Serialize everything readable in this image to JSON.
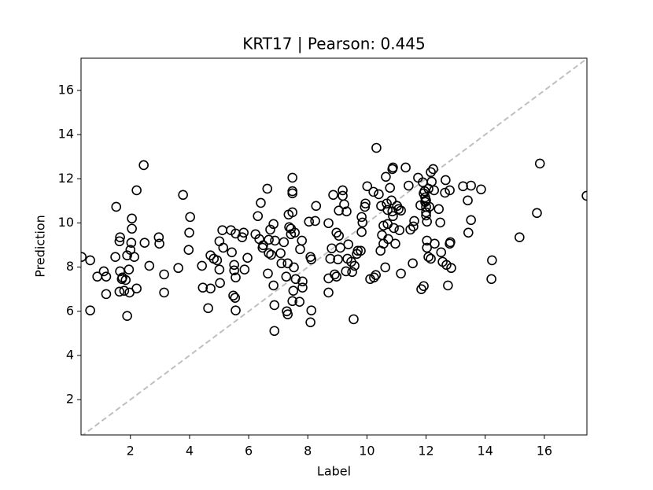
{
  "chart_data": {
    "type": "scatter",
    "title": "KRT17  |  Pearson: 0.445",
    "x_label": "Label",
    "y_label": "Prediction",
    "xlim": [
      0.33,
      17.44
    ],
    "ylim": [
      0.4,
      17.46
    ],
    "xticks": [
      2,
      4,
      6,
      8,
      10,
      12,
      14,
      16
    ],
    "yticks": [
      2,
      4,
      6,
      8,
      10,
      12,
      14,
      16
    ],
    "color": "#000000",
    "identity_line": true,
    "identity_line_color": "#bfbfbf",
    "x": [
      0.35,
      0.64,
      0.64,
      0.88,
      1.1,
      1.18,
      1.18,
      1.52,
      1.49,
      1.63,
      1.65,
      1.63,
      1.65,
      1.73,
      1.79,
      1.71,
      1.84,
      1.89,
      1.89,
      1.95,
      1.97,
      2.0,
      2.03,
      2.05,
      2.05,
      2.13,
      2.21,
      2.21,
      2.45,
      2.48,
      2.64,
      2.96,
      2.98,
      3.14,
      3.14,
      3.62,
      3.78,
      3.97,
      3.99,
      4.02,
      4.42,
      4.45,
      4.63,
      4.71,
      4.71,
      4.82,
      4.93,
      5.01,
      5.11,
      5.14,
      5.01,
      5.03,
      5.4,
      5.43,
      5.51,
      5.51,
      5.48,
      5.54,
      5.56,
      5.56,
      5.56,
      5.78,
      5.83,
      5.86,
      5.96,
      6.23,
      6.31,
      6.36,
      6.41,
      6.47,
      6.49,
      6.63,
      6.68,
      6.65,
      6.68,
      6.73,
      6.76,
      6.84,
      6.87,
      6.87,
      6.84,
      6.89,
      7.08,
      7.11,
      7.19,
      7.27,
      7.29,
      7.32,
      7.32,
      7.35,
      7.37,
      7.43,
      7.43,
      7.48,
      7.48,
      7.48,
      7.48,
      7.48,
      7.51,
      7.53,
      7.56,
      7.59,
      7.72,
      7.74,
      7.8,
      7.82,
      7.82,
      8.09,
      8.12,
      8.04,
      8.12,
      8.09,
      8.25,
      8.28,
      8.7,
      8.7,
      8.7,
      8.76,
      8.81,
      8.86,
      8.91,
      8.97,
      8.97,
      9.05,
      9.05,
      9.02,
      9.1,
      9.18,
      9.18,
      9.23,
      9.29,
      9.34,
      9.37,
      9.31,
      9.47,
      9.5,
      9.55,
      9.58,
      9.66,
      9.69,
      9.79,
      9.82,
      9.82,
      9.85,
      9.93,
      9.95,
      10.01,
      10.11,
      10.22,
      10.24,
      10.32,
      10.3,
      10.4,
      10.46,
      10.48,
      10.51,
      10.56,
      10.56,
      10.62,
      10.64,
      10.67,
      10.7,
      10.7,
      10.72,
      10.78,
      10.83,
      10.86,
      10.88,
      10.88,
      10.86,
      10.91,
      10.96,
      11.02,
      11.07,
      11.1,
      11.15,
      11.15,
      11.31,
      11.41,
      11.47,
      11.57,
      11.6,
      11.55,
      11.73,
      11.81,
      11.84,
      11.89,
      11.92,
      11.92,
      11.95,
      11.97,
      12.0,
      11.97,
      12.0,
      12.0,
      12.0,
      12.03,
      12.03,
      12.03,
      12.08,
      12.08,
      12.11,
      12.16,
      12.19,
      12.16,
      12.24,
      12.27,
      12.29,
      12.43,
      12.48,
      12.51,
      12.56,
      12.64,
      12.66,
      12.69,
      12.74,
      12.8,
      12.8,
      12.82,
      12.85,
      13.25,
      13.41,
      13.43,
      13.52,
      13.52,
      13.86,
      14.21,
      14.23,
      15.16,
      15.75,
      15.85,
      17.43
    ],
    "values": [
      8.46,
      8.31,
      6.04,
      7.57,
      7.81,
      7.57,
      6.78,
      10.73,
      8.46,
      9.17,
      9.35,
      6.89,
      7.81,
      7.53,
      6.93,
      7.46,
      7.42,
      5.79,
      8.53,
      7.89,
      6.85,
      8.78,
      9.1,
      10.2,
      9.74,
      8.46,
      11.48,
      7.03,
      12.62,
      9.1,
      8.06,
      9.35,
      9.06,
      7.67,
      6.85,
      7.96,
      11.27,
      8.78,
      9.56,
      10.27,
      8.06,
      7.07,
      6.14,
      7.03,
      8.53,
      8.38,
      8.31,
      9.17,
      9.67,
      8.88,
      7.89,
      7.28,
      9.67,
      8.67,
      8.1,
      7.85,
      6.71,
      6.61,
      9.52,
      7.53,
      6.04,
      9.35,
      9.56,
      7.89,
      8.42,
      9.49,
      10.31,
      9.27,
      10.91,
      8.88,
      8.99,
      11.55,
      9.24,
      7.71,
      8.63,
      9.7,
      8.56,
      9.95,
      6.28,
      5.11,
      7.17,
      9.2,
      8.63,
      8.17,
      9.13,
      7.57,
      6.0,
      5.86,
      8.17,
      10.38,
      9.81,
      9.74,
      9.49,
      12.05,
      11.44,
      11.34,
      10.48,
      6.46,
      6.93,
      7.99,
      9.56,
      7.46,
      6.43,
      8.81,
      9.2,
      7.07,
      7.35,
      8.46,
      8.35,
      10.06,
      6.04,
      5.5,
      10.09,
      10.77,
      9.99,
      7.49,
      6.85,
      8.38,
      8.85,
      11.27,
      7.67,
      7.57,
      9.56,
      9.42,
      10.56,
      8.35,
      8.88,
      11.48,
      11.23,
      10.84,
      7.81,
      8.38,
      9.03,
      10.52,
      8.24,
      7.78,
      5.64,
      8.06,
      8.6,
      8.74,
      8.74,
      9.59,
      10.27,
      10.02,
      10.73,
      10.88,
      11.66,
      7.46,
      11.41,
      7.53,
      13.4,
      7.64,
      11.3,
      8.74,
      10.77,
      9.45,
      9.88,
      9.06,
      7.99,
      12.09,
      10.88,
      10.59,
      9.95,
      9.27,
      11.59,
      11.02,
      12.44,
      12.51,
      10.31,
      10.52,
      9.77,
      9.06,
      10.77,
      10.63,
      9.67,
      10.56,
      7.71,
      12.51,
      11.69,
      9.7,
      9.84,
      10.09,
      8.17,
      12.05,
      10.8,
      7.0,
      11.84,
      7.14,
      11.34,
      11.44,
      11.16,
      11.02,
      10.95,
      10.73,
      10.48,
      10.34,
      10.06,
      9.2,
      8.88,
      8.46,
      11.55,
      10.73,
      12.3,
      11.87,
      8.38,
      12.44,
      11.48,
      9.06,
      10.63,
      10.02,
      8.67,
      8.24,
      11.37,
      11.94,
      8.1,
      7.17,
      11.48,
      9.06,
      9.13,
      7.96,
      11.66,
      11.02,
      9.56,
      11.69,
      10.13,
      11.52,
      7.46,
      8.31,
      9.35,
      10.45,
      12.69,
      11.23
    ]
  }
}
